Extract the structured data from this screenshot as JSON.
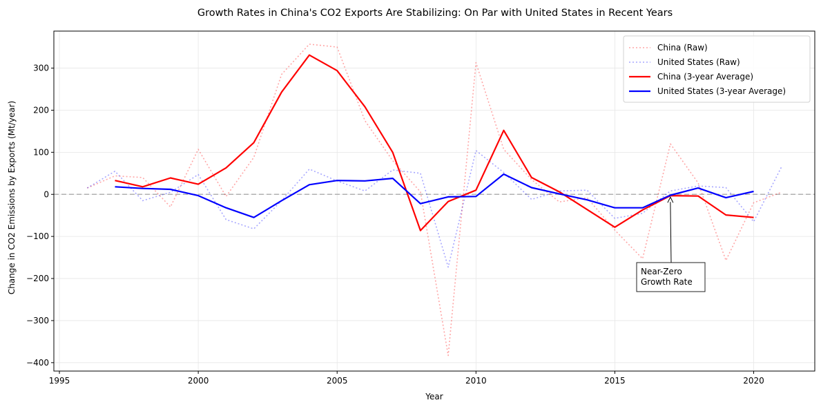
{
  "chart_data": {
    "type": "line",
    "title": "Growth Rates in China's CO2 Exports Are Stabilizing: On Par with United States in Recent Years",
    "xlabel": "Year",
    "ylabel": "Change in CO2 Emissions by Exports (Mt/year)",
    "xlim": [
      1994.8,
      2022.2
    ],
    "ylim": [
      -420,
      388
    ],
    "xticks": [
      1995,
      2000,
      2005,
      2010,
      2015,
      2020
    ],
    "yticks": [
      -400,
      -300,
      -200,
      -100,
      0,
      100,
      200,
      300
    ],
    "grid": true,
    "legend_position": "upper right",
    "zero_line": {
      "y": 0,
      "color": "#b0b0b0",
      "style": "dashed"
    },
    "series": [
      {
        "name": "China (Raw)",
        "color": "#ff0000",
        "style": "dotted",
        "opacity": 0.35,
        "x": [
          1996,
          1997,
          1998,
          1999,
          2000,
          2001,
          2002,
          2003,
          2004,
          2005,
          2006,
          2007,
          2008,
          2009,
          2010,
          2011,
          2012,
          2013,
          2014,
          2015,
          2016,
          2017,
          2018,
          2019,
          2020,
          2021
        ],
        "values": [
          15,
          44,
          40,
          -30,
          107,
          -5,
          88,
          285,
          357,
          350,
          175,
          80,
          6,
          -383,
          313,
          107,
          35,
          -18,
          -8,
          -85,
          -153,
          120,
          27,
          -157,
          -20,
          5
        ]
      },
      {
        "name": "United States (Raw)",
        "color": "#0000ff",
        "style": "dotted",
        "opacity": 0.35,
        "x": [
          1996,
          1997,
          1998,
          1999,
          2000,
          2001,
          2002,
          2003,
          2004,
          2005,
          2006,
          2007,
          2008,
          2009,
          2010,
          2011,
          2012,
          2013,
          2014,
          2015,
          2016,
          2017,
          2018,
          2019,
          2020,
          2021
        ],
        "values": [
          15,
          55,
          -15,
          5,
          47,
          -60,
          -82,
          -15,
          60,
          32,
          8,
          58,
          50,
          -173,
          104,
          52,
          -12,
          8,
          10,
          -57,
          -45,
          8,
          20,
          16,
          -65,
          65
        ]
      },
      {
        "name": "China (3-year Average)",
        "color": "#ff0000",
        "style": "solid",
        "opacity": 1,
        "x": [
          1997,
          1998,
          1999,
          2000,
          2001,
          2002,
          2003,
          2004,
          2005,
          2006,
          2007,
          2008,
          2009,
          2010,
          2011,
          2012,
          2013,
          2014,
          2015,
          2016,
          2017,
          2018,
          2019,
          2020
        ],
        "values": [
          33,
          18,
          39,
          24,
          63,
          123,
          243,
          331,
          294,
          208,
          100,
          -86,
          -17,
          10,
          152,
          40,
          6,
          -36,
          -78,
          -37,
          -3,
          -4,
          -49,
          -55
        ]
      },
      {
        "name": "United States (3-year Average)",
        "color": "#0000ff",
        "style": "solid",
        "opacity": 1,
        "x": [
          1997,
          1998,
          1999,
          2000,
          2001,
          2002,
          2003,
          2004,
          2005,
          2006,
          2007,
          2008,
          2009,
          2010,
          2011,
          2012,
          2013,
          2014,
          2015,
          2016,
          2017,
          2018,
          2019,
          2020
        ],
        "values": [
          18,
          14,
          12,
          -3,
          -32,
          -55,
          -15,
          23,
          33,
          32,
          38,
          -22,
          -6,
          -5,
          48,
          16,
          1,
          -13,
          -32,
          -32,
          -2,
          15,
          -8,
          7
        ]
      }
    ],
    "annotations": [
      {
        "text_lines": [
          "Near-Zero",
          "Growth Rate"
        ],
        "arrow_to": {
          "x": 2017,
          "y": -5
        }
      }
    ]
  }
}
